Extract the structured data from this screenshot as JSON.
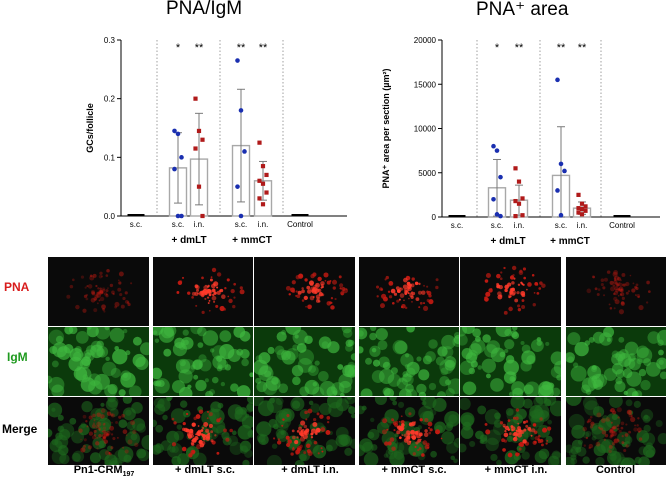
{
  "panels": [
    {
      "title": "PNA/IgM",
      "ylabel": "GCs/follicle",
      "yticks": [
        "0.0",
        "0.1",
        "0.2",
        "0.3"
      ],
      "ylim": [
        0,
        0.3
      ],
      "groups": [
        "+ dmLT",
        "+ mmCT"
      ],
      "chart_type": "bar"
    },
    {
      "title": "PNA⁺ area",
      "ylabel": "PNA⁺ area per section (µm²)",
      "yticks": [
        "0",
        "5000",
        "10000",
        "15000",
        "20000"
      ],
      "ylim": [
        0,
        20000
      ],
      "groups": [
        "+ dmLT",
        "+ mmCT"
      ],
      "chart_type": "bar"
    }
  ],
  "chart_data": [
    {
      "type": "bar",
      "title": "PNA/IgM",
      "ylabel": "GCs/follicle",
      "ylim": [
        0,
        0.3
      ],
      "categories": [
        "s.c.",
        "s.c.",
        "i.n.",
        "s.c.",
        "i.n.",
        "Control"
      ],
      "groups": [
        "",
        "+ dmLT",
        "+ dmLT",
        "+ mmCT",
        "+ mmCT",
        ""
      ],
      "values": [
        0.0,
        0.082,
        0.097,
        0.12,
        0.06,
        0.0
      ],
      "sd": [
        0.0,
        0.06,
        0.078,
        0.096,
        0.033,
        0.0
      ],
      "colors": [
        "#000000",
        "#1a2fb0",
        "#b01a1a",
        "#1a2fb0",
        "#b01a1a",
        "#000000"
      ],
      "points": [
        [
          0,
          0,
          0,
          0,
          0
        ],
        [
          0.145,
          0.14,
          0.1,
          0.08,
          0.0,
          0.0
        ],
        [
          0.2,
          0.145,
          0.13,
          0.115,
          0.05,
          0.0
        ],
        [
          0.265,
          0.18,
          0.11,
          0.05,
          0.0
        ],
        [
          0.125,
          0.085,
          0.07,
          0.06,
          0.055,
          0.04,
          0.03,
          0.02
        ],
        [
          0,
          0,
          0,
          0
        ]
      ],
      "significance": [
        "",
        "*",
        "**",
        "**",
        "**",
        ""
      ]
    },
    {
      "type": "bar",
      "title": "PNA⁺ area",
      "ylabel": "PNA⁺ area per section (µm²)",
      "ylim": [
        0,
        20000
      ],
      "categories": [
        "s.c.",
        "s.c.",
        "i.n.",
        "s.c.",
        "i.n.",
        "Control"
      ],
      "groups": [
        "",
        "+ dmLT",
        "+ dmLT",
        "+ mmCT",
        "+ mmCT",
        ""
      ],
      "values": [
        0,
        3300,
        1900,
        4700,
        1000,
        0
      ],
      "sd": [
        0,
        3200,
        1700,
        5500,
        700,
        0
      ],
      "colors": [
        "#000000",
        "#1a2fb0",
        "#b01a1a",
        "#1a2fb0",
        "#b01a1a",
        "#000000"
      ],
      "points": [
        [
          0,
          0,
          0,
          0,
          0
        ],
        [
          8000,
          7500,
          4500,
          2000,
          300,
          100
        ],
        [
          5500,
          4000,
          2100,
          1800,
          1500,
          200,
          100
        ],
        [
          15500,
          6000,
          5200,
          3000,
          200
        ],
        [
          2500,
          1500,
          1200,
          1000,
          900,
          700,
          500,
          300
        ],
        [
          0,
          0,
          0,
          0
        ]
      ],
      "significance": [
        "",
        "*",
        "**",
        "**",
        "**",
        ""
      ]
    }
  ],
  "micrographs": {
    "row_labels": [
      "PNA",
      "IgM",
      "Merge"
    ],
    "row_colors": [
      "#d81c1c",
      "#1f9a1f",
      "#000000"
    ],
    "col_labels": [
      "Pn1-CRM",
      "+ dmLT s.c.",
      "+ dmLT i.n.",
      "+ mmCT s.c.",
      "+ mmCT i.n.",
      "Control"
    ],
    "col0_subscript": "197"
  }
}
